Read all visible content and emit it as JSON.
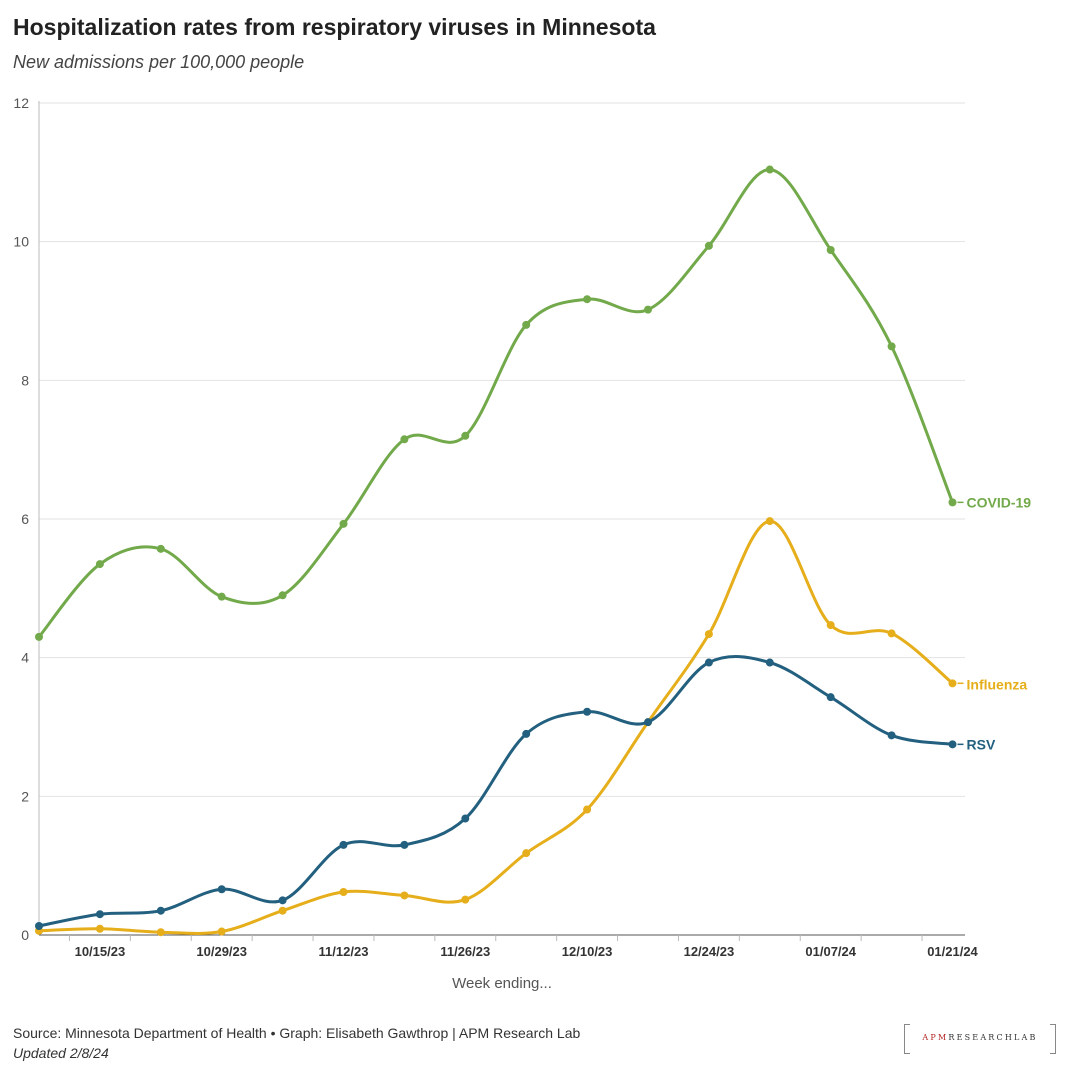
{
  "header": {
    "title": "Hospitalization rates from respiratory viruses in Minnesota",
    "subtitle": "New admissions per 100,000 people"
  },
  "footer": {
    "source": "Source: Minnesota Department of Health • Graph: Elisabeth Gawthrop | APM Research Lab",
    "updated": "Updated 2/8/24"
  },
  "logo": {
    "apm": "APM",
    "rest": "RESEARCHLAB"
  },
  "colors": {
    "covid": "#72a94a",
    "influenza": "#e5ae1a",
    "rsv": "#23607f",
    "grid": "#e2e2e2",
    "axis": "#999999"
  },
  "chart_data": {
    "type": "line",
    "title": "Hospitalization rates from respiratory viruses in Minnesota",
    "subtitle": "New admissions per 100,000 people",
    "xlabel": "Week ending...",
    "ylabel": "",
    "ylim": [
      0,
      12
    ],
    "yticks": [
      0,
      2,
      4,
      6,
      8,
      10,
      12
    ],
    "x_index": [
      0,
      1,
      2,
      3,
      4,
      5,
      6,
      7,
      8,
      9,
      10,
      11,
      12,
      13,
      14,
      15
    ],
    "x_tick_labels": [
      {
        "i": 1,
        "label": "10/15/23"
      },
      {
        "i": 3,
        "label": "10/29/23"
      },
      {
        "i": 5,
        "label": "11/12/23"
      },
      {
        "i": 7,
        "label": "11/26/23"
      },
      {
        "i": 9,
        "label": "12/10/23"
      },
      {
        "i": 11,
        "label": "12/24/23"
      },
      {
        "i": 13,
        "label": "01/07/24"
      },
      {
        "i": 15,
        "label": "01/21/24"
      }
    ],
    "grid": true,
    "series": [
      {
        "name": "COVID-19",
        "color": "#72a94a",
        "values": [
          4.3,
          5.35,
          5.57,
          4.88,
          4.9,
          5.93,
          7.15,
          7.2,
          8.8,
          9.17,
          9.02,
          9.94,
          11.04,
          9.88,
          8.49,
          6.24
        ]
      },
      {
        "name": "Influenza",
        "color": "#e5ae1a",
        "values": [
          0.06,
          0.09,
          0.04,
          0.05,
          0.35,
          0.62,
          0.57,
          0.51,
          1.18,
          1.81,
          3.07,
          4.34,
          5.97,
          4.47,
          4.35,
          3.63
        ]
      },
      {
        "name": "RSV",
        "color": "#23607f",
        "values": [
          0.13,
          0.3,
          0.35,
          0.66,
          0.5,
          1.3,
          1.3,
          1.68,
          2.9,
          3.22,
          3.07,
          3.93,
          3.93,
          3.43,
          2.88,
          2.75
        ]
      }
    ]
  }
}
